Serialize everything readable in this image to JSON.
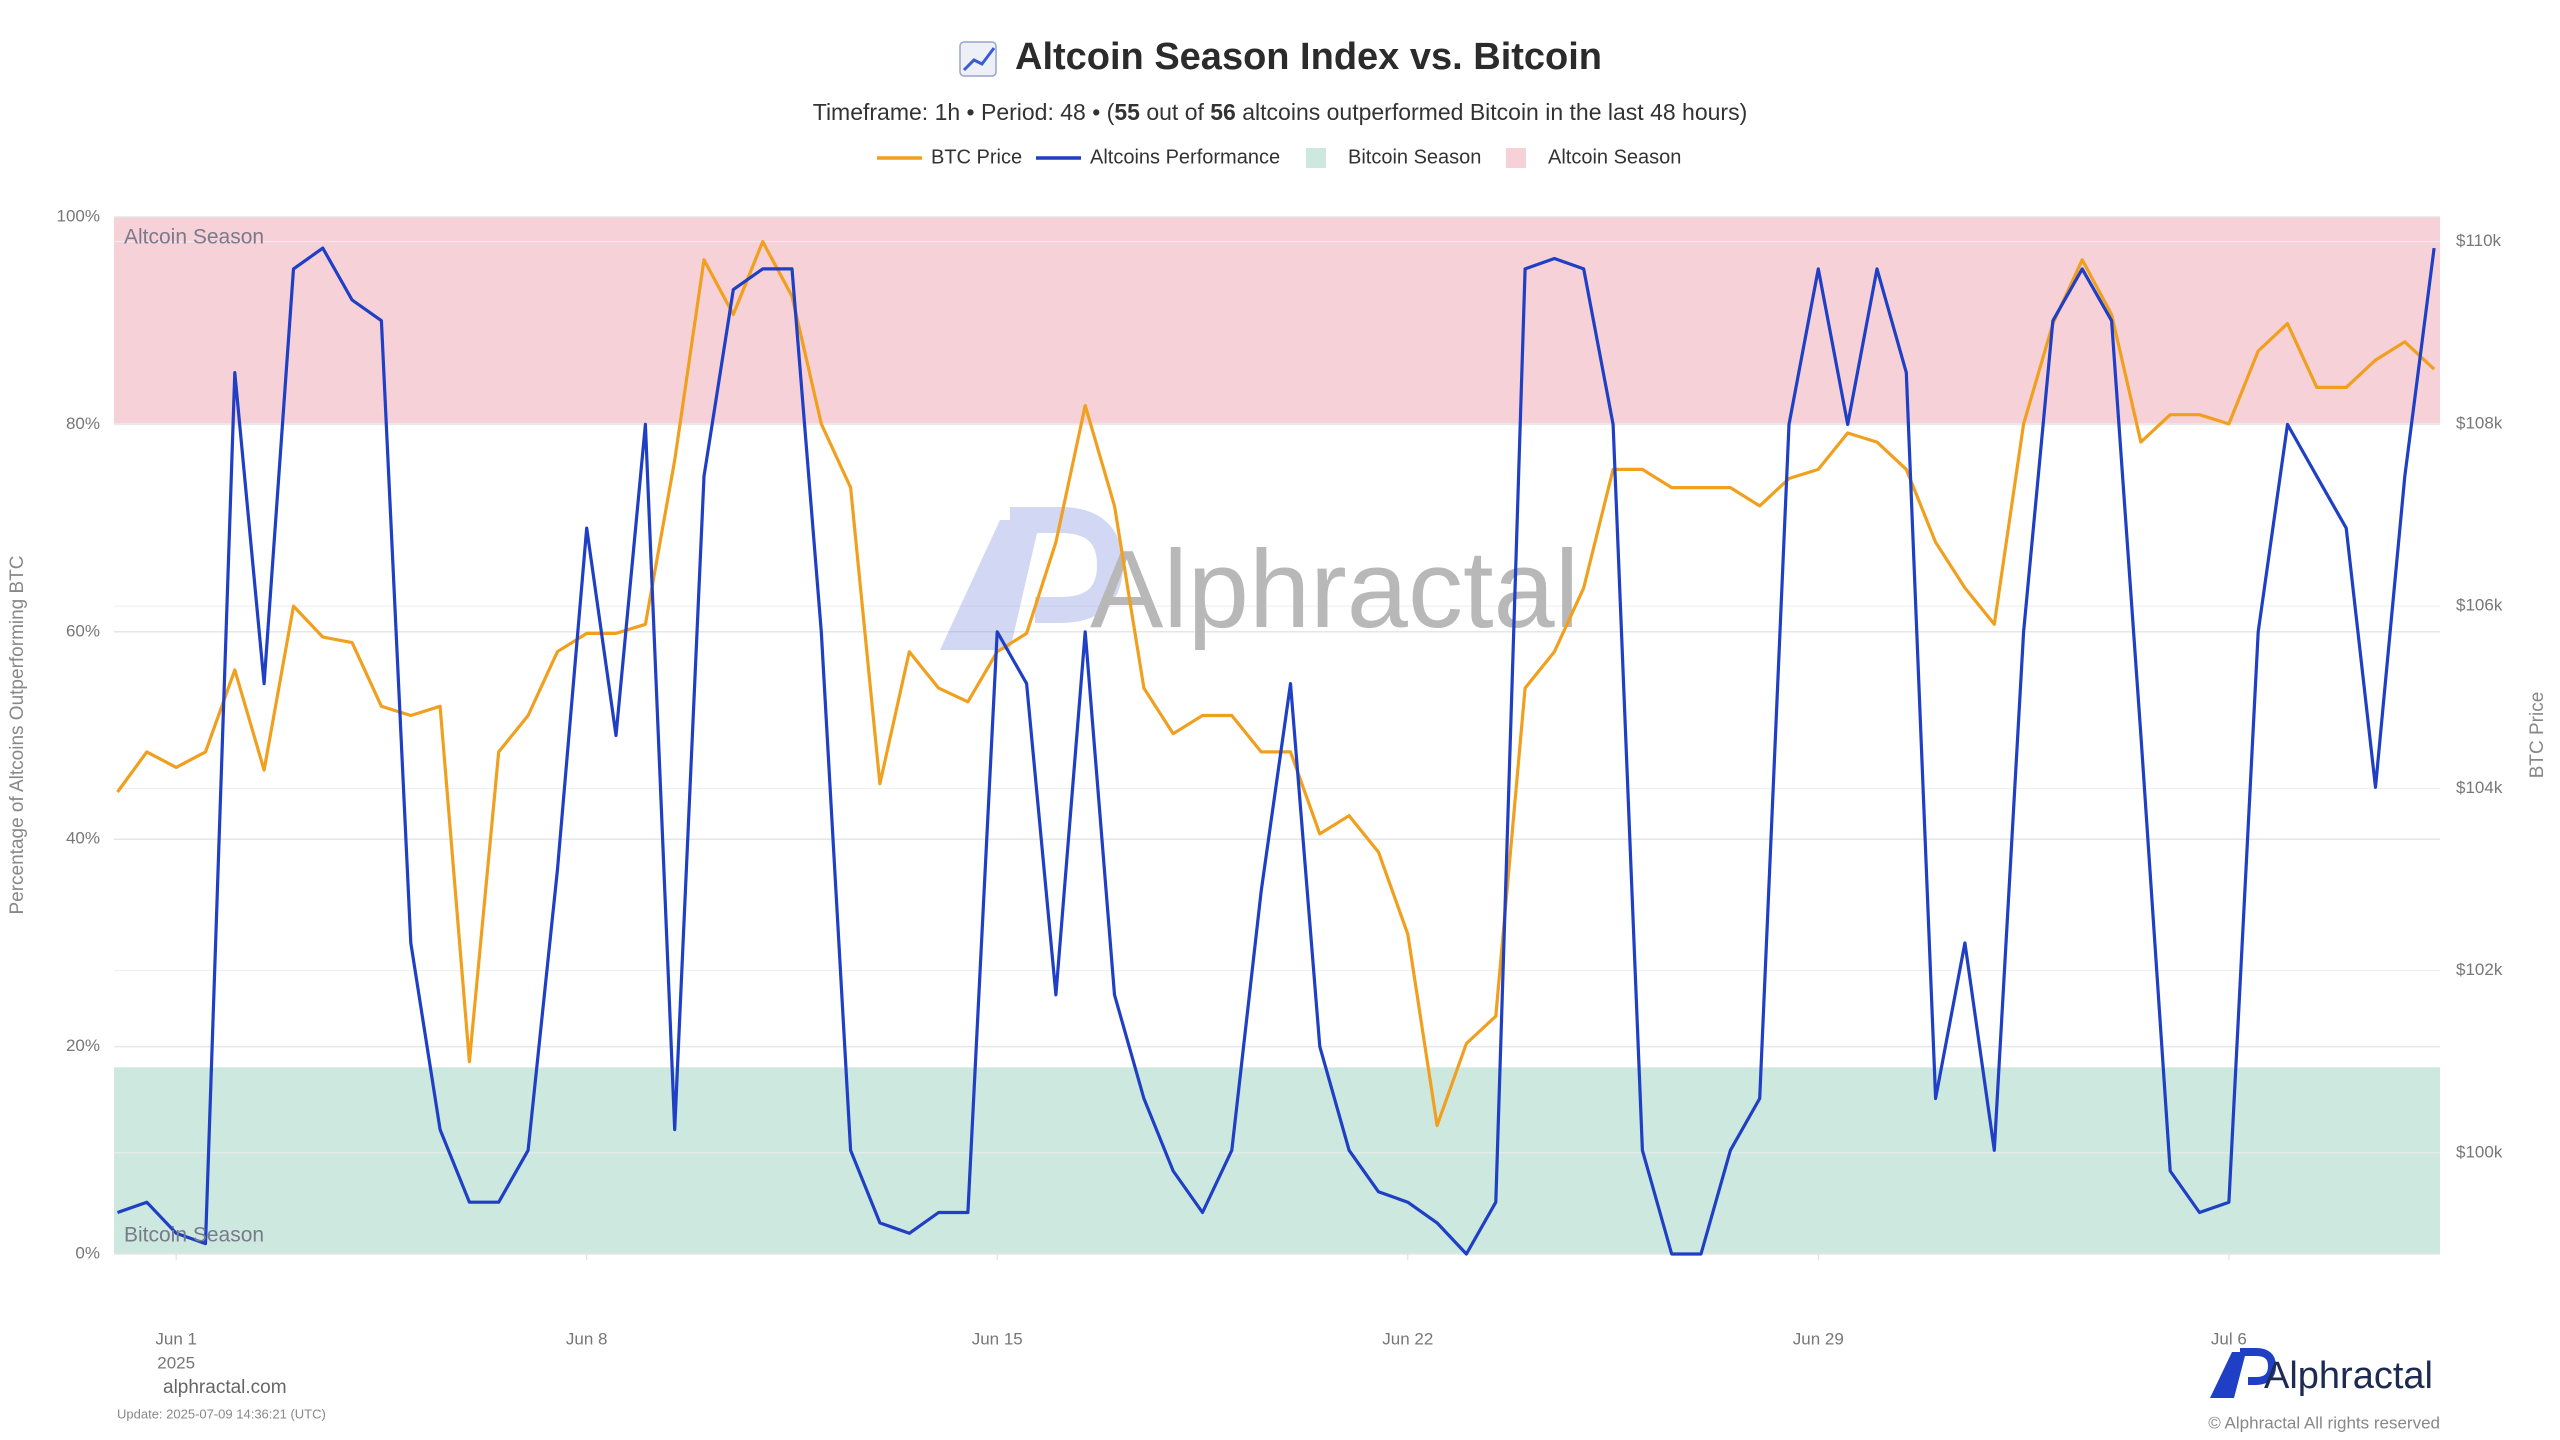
{
  "chart_data": {
    "type": "line",
    "title": "Altcoin Season Index vs. Bitcoin",
    "subtitle": [
      "Timeframe: 1h  •  Period: 48  •  (",
      "55",
      " out of ",
      "56",
      " altcoins outperformed Bitcoin in the last 48 hours)"
    ],
    "y_label": "Percentage of Altcoins Outperforming BTC",
    "y2_label": "BTC Price",
    "x": [
      -1,
      -0.5,
      0,
      0.5,
      1,
      1.5,
      2,
      2.5,
      3,
      3.5,
      4,
      4.5,
      5,
      5.5,
      6,
      6.5,
      7,
      7.5,
      8,
      8.5,
      9,
      9.5,
      10,
      10.5,
      11,
      11.5,
      12,
      12.5,
      13,
      13.5,
      14,
      14.5,
      15,
      15.5,
      16,
      16.5,
      17,
      17.5,
      18,
      18.5,
      19,
      19.5,
      20,
      20.5,
      21,
      21.5,
      22,
      22.5,
      23,
      23.5,
      24,
      24.5,
      25,
      25.5,
      26,
      26.5,
      27,
      27.5,
      28,
      28.5,
      29,
      29.5,
      30,
      30.5,
      31,
      31.5,
      32,
      32.5,
      33,
      33.5,
      34,
      34.5,
      35,
      35.5,
      36,
      36.5,
      37,
      37.5,
      38,
      38.5
    ],
    "xlim": [
      -1.06,
      38.6
    ],
    "xticks": [
      {
        "value": 0,
        "label": "Jun 1"
      },
      {
        "value": 7,
        "label": "Jun 8"
      },
      {
        "value": 14,
        "label": "Jun 15"
      },
      {
        "value": 21,
        "label": "Jun 22"
      },
      {
        "value": 28,
        "label": "Jun 29"
      },
      {
        "value": 35,
        "label": "Jul 6"
      }
    ],
    "x_year_label": "2025",
    "ylim": [
      0,
      100
    ],
    "yticks": [
      {
        "value": 0,
        "label": "0%"
      },
      {
        "value": 20,
        "label": "20%"
      },
      {
        "value": 40,
        "label": "40%"
      },
      {
        "value": 60,
        "label": "60%"
      },
      {
        "value": 80,
        "label": "80%"
      },
      {
        "value": 100,
        "label": "100%"
      }
    ],
    "y2lim": [
      98890,
      110270
    ],
    "y2ticks": [
      {
        "value": 100000,
        "label": "$100k"
      },
      {
        "value": 102000,
        "label": "$102k"
      },
      {
        "value": 104000,
        "label": "$104k"
      },
      {
        "value": 106000,
        "label": "$106k"
      },
      {
        "value": 108000,
        "label": "$108k"
      },
      {
        "value": 110000,
        "label": "$110k"
      }
    ],
    "grid": true,
    "series": [
      {
        "name": "BTC Price",
        "color": "#f0a01e",
        "axis": "y2",
        "values": [
          103960,
          104400,
          104230,
          104400,
          105300,
          104200,
          106000,
          105660,
          105600,
          104900,
          104800,
          104900,
          101000,
          104400,
          104800,
          105500,
          105700,
          105700,
          105800,
          107600,
          109800,
          109200,
          110000,
          109400,
          108000,
          107300,
          104050,
          105500,
          105100,
          104950,
          105500,
          105700,
          106700,
          108200,
          107100,
          105100,
          104600,
          104800,
          104800,
          104400,
          104400,
          103500,
          103700,
          103300,
          102400,
          100300,
          101200,
          101500,
          105100,
          105500,
          106200,
          107500,
          107500,
          107300,
          107300,
          107300,
          107100,
          107400,
          107500,
          107900,
          107800,
          107500,
          106700,
          106200,
          105800,
          108000,
          109100,
          109800,
          109200,
          107800,
          108100,
          108100,
          108000,
          108800,
          109100,
          108400,
          108400,
          108700,
          108900,
          108600
        ]
      },
      {
        "name": "Altcoins Performance",
        "color": "#1f3fc4",
        "axis": "y",
        "values": [
          4,
          5,
          2,
          1,
          85,
          55,
          95,
          97,
          92,
          90,
          30,
          12,
          5,
          5,
          10,
          37,
          70,
          50,
          80,
          12,
          75,
          93,
          95,
          95,
          60,
          10,
          3,
          2,
          4,
          4,
          60,
          55,
          25,
          60,
          25,
          15,
          8,
          4,
          10,
          35,
          55,
          20,
          10,
          6,
          5,
          3,
          0,
          5,
          95,
          96,
          95,
          80,
          10,
          0,
          0,
          10,
          15,
          80,
          95,
          80,
          95,
          85,
          15,
          30,
          10,
          60,
          90,
          95,
          90,
          50,
          8,
          4,
          5,
          60,
          80,
          75,
          70,
          45,
          75,
          97
        ]
      }
    ],
    "bands": [
      {
        "name": "Bitcoin Season",
        "from": 0,
        "to": 18,
        "color": "#cce8df"
      },
      {
        "name": "Altcoin Season",
        "from": 80,
        "to": 100,
        "color": "#f7d1d8"
      }
    ],
    "watermark": "Alphractal",
    "source": "alphractal.com",
    "update": "Update: 2025-07-09 14:36:21 (UTC)",
    "brand": "Alphractal",
    "copyright": "© Alphractal All rights reserved"
  }
}
